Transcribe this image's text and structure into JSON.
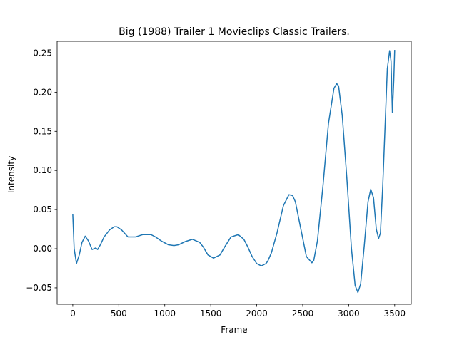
{
  "chart_data": {
    "type": "line",
    "title": "Big (1988) Trailer 1  Movieclips Classic Trailers.",
    "xlabel": "Frame",
    "ylabel": "Intensity",
    "xlim": [
      -170,
      3680
    ],
    "ylim": [
      -0.071,
      0.265
    ],
    "xticks": [
      0,
      500,
      1000,
      1500,
      2000,
      2500,
      3000,
      3500
    ],
    "xtick_labels": [
      "0",
      "500",
      "1000",
      "1500",
      "2000",
      "2500",
      "3000",
      "3500"
    ],
    "yticks": [
      -0.05,
      0.0,
      0.05,
      0.1,
      0.15,
      0.2,
      0.25
    ],
    "ytick_labels": [
      "−0.05",
      "0.00",
      "0.05",
      "0.10",
      "0.15",
      "0.20",
      "0.25"
    ],
    "grid": false,
    "legend": "none",
    "line_color": "#1f77b4",
    "series": [
      {
        "x": [
          0,
          15,
          40,
          70,
          100,
          135,
          170,
          210,
          250,
          270,
          300,
          340,
          400,
          450,
          480,
          530,
          600,
          680,
          760,
          850,
          900,
          960,
          1040,
          1100,
          1150,
          1220,
          1300,
          1380,
          1420,
          1470,
          1530,
          1600,
          1650,
          1720,
          1800,
          1860,
          1900,
          1950,
          2000,
          2050,
          2100,
          2120,
          2160,
          2220,
          2290,
          2350,
          2390,
          2420,
          2480,
          2540,
          2600,
          2620,
          2660,
          2720,
          2780,
          2840,
          2870,
          2890,
          2930,
          2980,
          3030,
          3070,
          3100,
          3130,
          3170,
          3210,
          3240,
          3270,
          3300,
          3325,
          3345,
          3370,
          3400,
          3420,
          3445,
          3460,
          3475,
          3490,
          3500
        ],
        "y": [
          0.044,
          0.0,
          -0.019,
          -0.008,
          0.008,
          0.016,
          0.01,
          -0.001,
          0.001,
          -0.001,
          0.005,
          0.015,
          0.024,
          0.028,
          0.028,
          0.024,
          0.015,
          0.015,
          0.018,
          0.018,
          0.015,
          0.01,
          0.005,
          0.004,
          0.005,
          0.009,
          0.012,
          0.008,
          0.002,
          -0.008,
          -0.012,
          -0.008,
          0.002,
          0.015,
          0.018,
          0.012,
          0.003,
          -0.01,
          -0.019,
          -0.022,
          -0.019,
          -0.016,
          -0.005,
          0.02,
          0.055,
          0.069,
          0.068,
          0.06,
          0.025,
          -0.01,
          -0.018,
          -0.015,
          0.01,
          0.08,
          0.16,
          0.205,
          0.211,
          0.208,
          0.17,
          0.09,
          0.0,
          -0.047,
          -0.056,
          -0.045,
          0.005,
          0.06,
          0.076,
          0.065,
          0.025,
          0.013,
          0.02,
          0.08,
          0.17,
          0.23,
          0.253,
          0.24,
          0.174,
          0.215,
          0.254
        ]
      }
    ]
  }
}
